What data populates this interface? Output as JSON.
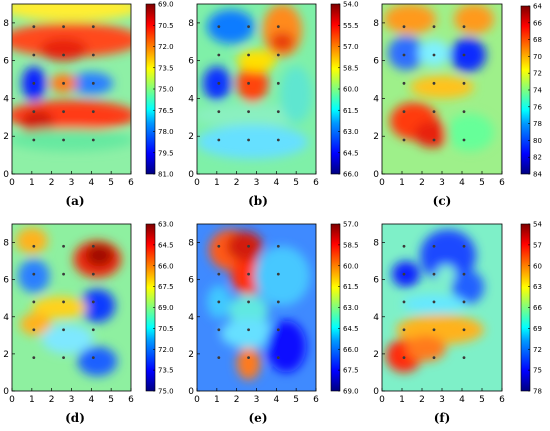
{
  "chart_data": [
    {
      "id": "a",
      "label": "(a)",
      "type": "heatmap",
      "xlim": [
        0,
        6
      ],
      "ylim": [
        0,
        9
      ],
      "xticks": [
        "0",
        "1",
        "2",
        "3",
        "4",
        "5",
        "6"
      ],
      "yticks": [
        "0",
        "2",
        "4",
        "6",
        "8"
      ],
      "colorbar": {
        "ticks": [
          "69.0",
          "70.5",
          "72.0",
          "73.5",
          "75.0",
          "76.5",
          "78.0",
          "79.5",
          "81.0"
        ],
        "reversed": true
      },
      "points": [
        [
          1.1,
          7.8
        ],
        [
          2.6,
          7.8
        ],
        [
          4.1,
          7.8
        ],
        [
          1.1,
          6.3
        ],
        [
          2.6,
          6.3
        ],
        [
          4.1,
          6.3
        ],
        [
          1.1,
          4.8
        ],
        [
          2.6,
          4.8
        ],
        [
          4.1,
          4.8
        ],
        [
          1.1,
          3.3
        ],
        [
          2.6,
          3.3
        ],
        [
          4.1,
          3.3
        ],
        [
          1.1,
          1.8
        ],
        [
          2.6,
          1.8
        ],
        [
          4.1,
          1.8
        ]
      ]
    },
    {
      "id": "b",
      "label": "(b)",
      "type": "heatmap",
      "xlim": [
        0,
        6
      ],
      "ylim": [
        0,
        9
      ],
      "xticks": [
        "0",
        "1",
        "2",
        "3",
        "4",
        "5",
        "6"
      ],
      "yticks": [
        "0",
        "2",
        "4",
        "6",
        "8"
      ],
      "colorbar": {
        "ticks": [
          "54.0",
          "55.5",
          "57.0",
          "58.5",
          "60.0",
          "61.5",
          "63.0",
          "64.5",
          "66.0"
        ],
        "reversed": true
      },
      "points": [
        [
          1.1,
          7.8
        ],
        [
          2.6,
          7.8
        ],
        [
          4.1,
          7.8
        ],
        [
          1.1,
          6.3
        ],
        [
          2.6,
          6.3
        ],
        [
          4.1,
          6.3
        ],
        [
          1.1,
          4.8
        ],
        [
          2.6,
          4.8
        ],
        [
          4.1,
          4.8
        ],
        [
          1.1,
          3.3
        ],
        [
          2.6,
          3.3
        ],
        [
          4.1,
          3.3
        ],
        [
          1.1,
          1.8
        ],
        [
          2.6,
          1.8
        ],
        [
          4.1,
          1.8
        ]
      ]
    },
    {
      "id": "c",
      "label": "(c)",
      "type": "heatmap",
      "xlim": [
        0,
        6
      ],
      "ylim": [
        0,
        9
      ],
      "xticks": [
        "0",
        "1",
        "2",
        "3",
        "4",
        "5",
        "6"
      ],
      "yticks": [
        "0",
        "2",
        "4",
        "6",
        "8"
      ],
      "colorbar": {
        "ticks": [
          "64",
          "66",
          "68",
          "70",
          "72",
          "74",
          "76",
          "78",
          "80",
          "82",
          "84"
        ],
        "reversed": true
      },
      "points": [
        [
          1.1,
          7.8
        ],
        [
          2.6,
          7.8
        ],
        [
          4.1,
          7.8
        ],
        [
          1.1,
          6.3
        ],
        [
          2.6,
          6.3
        ],
        [
          4.1,
          6.3
        ],
        [
          1.1,
          4.8
        ],
        [
          2.6,
          4.8
        ],
        [
          4.1,
          4.8
        ],
        [
          1.1,
          3.3
        ],
        [
          2.6,
          3.3
        ],
        [
          4.1,
          3.3
        ],
        [
          1.1,
          1.8
        ],
        [
          2.6,
          1.8
        ],
        [
          4.1,
          1.8
        ]
      ]
    },
    {
      "id": "d",
      "label": "(d)",
      "type": "heatmap",
      "xlim": [
        0,
        6
      ],
      "ylim": [
        0,
        9
      ],
      "xticks": [
        "0",
        "1",
        "2",
        "3",
        "4",
        "5",
        "6"
      ],
      "yticks": [
        "0",
        "2",
        "4",
        "6",
        "8"
      ],
      "colorbar": {
        "ticks": [
          "63.0",
          "64.5",
          "66.0",
          "67.5",
          "69.0",
          "70.5",
          "72.0",
          "73.5",
          "75.0"
        ],
        "reversed": true
      },
      "points": [
        [
          1.1,
          7.8
        ],
        [
          2.6,
          7.8
        ],
        [
          4.1,
          7.8
        ],
        [
          1.1,
          6.3
        ],
        [
          2.6,
          6.3
        ],
        [
          4.1,
          6.3
        ],
        [
          1.1,
          4.8
        ],
        [
          2.6,
          4.8
        ],
        [
          4.1,
          4.8
        ],
        [
          1.1,
          3.3
        ],
        [
          2.6,
          3.3
        ],
        [
          4.1,
          3.3
        ],
        [
          1.1,
          1.8
        ],
        [
          2.6,
          1.8
        ],
        [
          4.1,
          1.8
        ]
      ]
    },
    {
      "id": "e",
      "label": "(e)",
      "type": "heatmap",
      "xlim": [
        0,
        6
      ],
      "ylim": [
        0,
        9
      ],
      "xticks": [
        "0",
        "1",
        "2",
        "3",
        "4",
        "5",
        "6"
      ],
      "yticks": [
        "0",
        "2",
        "4",
        "6",
        "8"
      ],
      "colorbar": {
        "ticks": [
          "57.0",
          "58.5",
          "60.0",
          "61.5",
          "63.0",
          "64.5",
          "66.0",
          "67.5",
          "69.0"
        ],
        "reversed": true
      },
      "points": [
        [
          1.1,
          7.8
        ],
        [
          2.6,
          7.8
        ],
        [
          4.1,
          7.8
        ],
        [
          1.1,
          6.3
        ],
        [
          2.6,
          6.3
        ],
        [
          4.1,
          6.3
        ],
        [
          1.1,
          4.8
        ],
        [
          2.6,
          4.8
        ],
        [
          4.1,
          4.8
        ],
        [
          1.1,
          3.3
        ],
        [
          2.6,
          3.3
        ],
        [
          4.1,
          3.3
        ],
        [
          1.1,
          1.8
        ],
        [
          2.6,
          1.8
        ],
        [
          4.1,
          1.8
        ]
      ]
    },
    {
      "id": "f",
      "label": "(f)",
      "type": "heatmap",
      "xlim": [
        0,
        6
      ],
      "ylim": [
        0,
        9
      ],
      "xticks": [
        "0",
        "1",
        "2",
        "3",
        "4",
        "5",
        "6"
      ],
      "yticks": [
        "0",
        "2",
        "4",
        "6",
        "8"
      ],
      "colorbar": {
        "ticks": [
          "54",
          "57",
          "60",
          "63",
          "66",
          "69",
          "72",
          "75",
          "78"
        ],
        "reversed": true
      },
      "points": [
        [
          1.1,
          7.8
        ],
        [
          2.6,
          7.8
        ],
        [
          4.1,
          7.8
        ],
        [
          1.1,
          6.3
        ],
        [
          2.6,
          6.3
        ],
        [
          4.1,
          6.3
        ],
        [
          1.1,
          4.8
        ],
        [
          2.6,
          4.8
        ],
        [
          4.1,
          4.8
        ],
        [
          1.1,
          3.3
        ],
        [
          2.6,
          3.3
        ],
        [
          4.1,
          3.3
        ],
        [
          1.1,
          1.8
        ],
        [
          2.6,
          1.8
        ],
        [
          4.1,
          1.8
        ]
      ]
    }
  ]
}
